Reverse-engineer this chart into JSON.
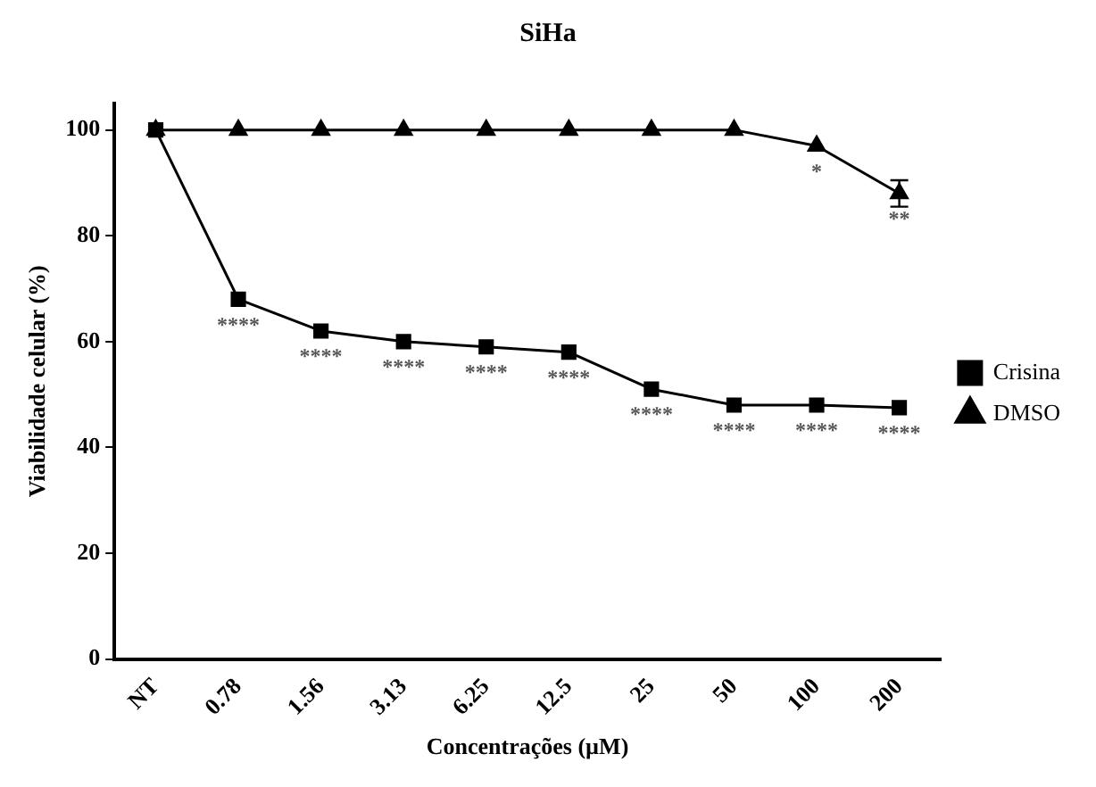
{
  "chart_data": {
    "type": "line",
    "title": "SiHa",
    "xlabel": "Concentrações (µM)",
    "ylabel": "Viabilidade celular (%)",
    "categories": [
      "NT",
      "0.78",
      "1.56",
      "3.13",
      "6.25",
      "12.5",
      "25",
      "50",
      "100",
      "200"
    ],
    "series": [
      {
        "name": "Crisina",
        "color": "#000000",
        "marker": "square",
        "values": [
          100,
          68,
          62,
          60,
          59,
          58,
          51,
          48,
          48,
          47.5
        ]
      },
      {
        "name": "DMSO",
        "color": "#000000",
        "marker": "triangle",
        "values": [
          100,
          100,
          100,
          100,
          100,
          100,
          100,
          100,
          97,
          88
        ],
        "errors": [
          null,
          null,
          null,
          null,
          null,
          null,
          null,
          null,
          null,
          2.5
        ]
      }
    ],
    "ylim": [
      0,
      105
    ],
    "yticks": [
      0,
      20,
      40,
      60,
      80,
      100
    ],
    "grid": false,
    "legend": "right",
    "line_style": "solid",
    "annotations": [
      {
        "text": "****",
        "x": "0.78",
        "y": 68
      },
      {
        "text": "****",
        "x": "1.56",
        "y": 62
      },
      {
        "text": "****",
        "x": "3.13",
        "y": 60
      },
      {
        "text": "****",
        "x": "6.25",
        "y": 59
      },
      {
        "text": "****",
        "x": "12.5",
        "y": 58
      },
      {
        "text": "****",
        "x": "25",
        "y": 51
      },
      {
        "text": "****",
        "x": "50",
        "y": 48
      },
      {
        "text": "****",
        "x": "100",
        "y": 48
      },
      {
        "text": "****",
        "x": "200",
        "y": 47.5
      },
      {
        "text": "*",
        "x": "100",
        "y": 97
      },
      {
        "text": "**",
        "x": "200",
        "y": 88
      }
    ]
  }
}
